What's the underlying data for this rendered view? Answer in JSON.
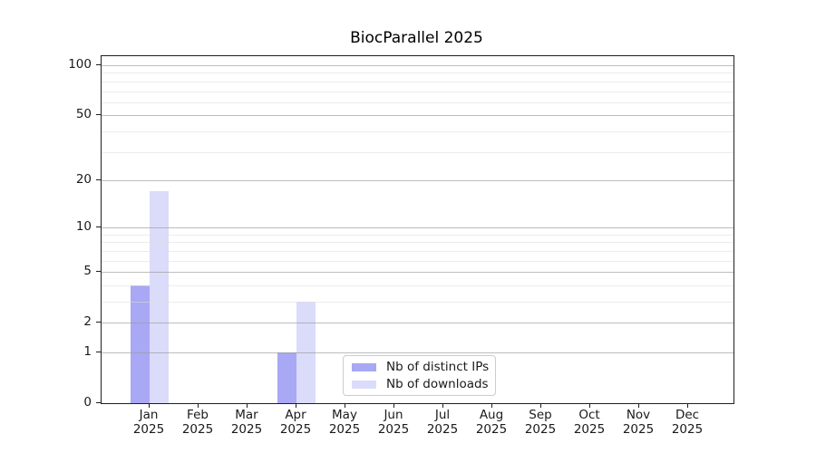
{
  "title": "BiocParallel 2025",
  "chart_data": {
    "type": "bar",
    "title": "BiocParallel 2025",
    "xlabel": "",
    "ylabel": "",
    "categories": [
      "Jan",
      "Feb",
      "Mar",
      "Apr",
      "May",
      "Jun",
      "Jul",
      "Aug",
      "Sep",
      "Oct",
      "Nov",
      "Dec"
    ],
    "category_year": "2025",
    "series": [
      {
        "name": "Nb of distinct IPs",
        "color": "#a8a8f4",
        "values": [
          4,
          0,
          0,
          1,
          0,
          0,
          0,
          0,
          0,
          0,
          0,
          0
        ]
      },
      {
        "name": "Nb of downloads",
        "color": "#dbdbfa",
        "values": [
          17,
          0,
          0,
          3,
          0,
          0,
          0,
          0,
          0,
          0,
          0,
          0
        ]
      }
    ],
    "y_scale": "log1p",
    "ylim": [
      0,
      113
    ],
    "y_major_ticks": [
      0,
      1,
      2,
      5,
      10,
      20,
      50,
      100
    ],
    "y_minor_gridlines": [
      3,
      4,
      6,
      7,
      8,
      9,
      30,
      40,
      60,
      70,
      80,
      90
    ],
    "grid": true,
    "legend": {
      "position": "lower center",
      "entries": [
        "Nb of distinct IPs",
        "Nb of downloads"
      ]
    }
  },
  "colors": {
    "background": "#ffffff",
    "axis": "#1f1f1f",
    "major_grid": "#9a9a9a",
    "minor_grid": "#dcdcdc",
    "series_distinct_ips": "#a8a8f4",
    "series_downloads": "#dbdbfa"
  }
}
